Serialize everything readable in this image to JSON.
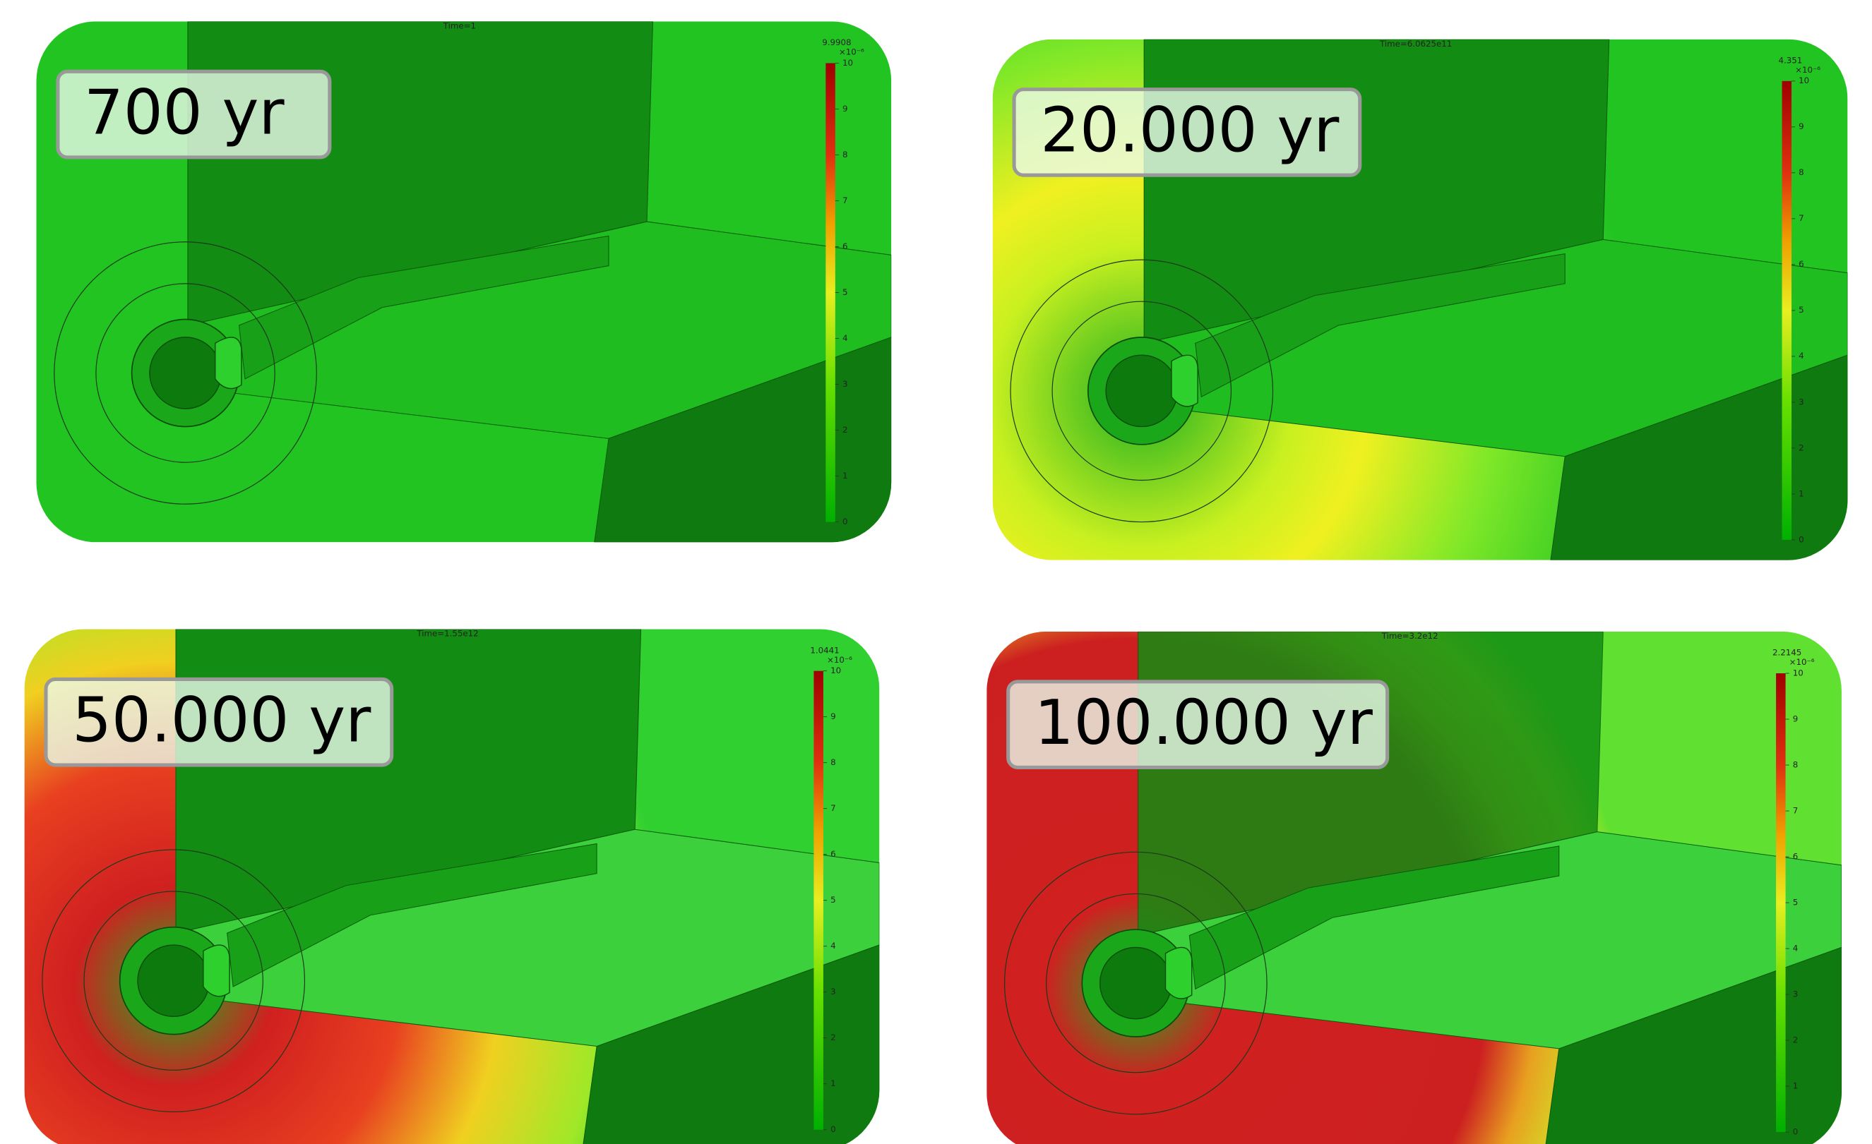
{
  "panels": [
    {
      "label": "700 yr",
      "time": "Time=1",
      "max": "9.9908",
      "unit": "×10⁻⁶",
      "ticks": [
        10,
        9,
        8,
        7,
        6,
        5,
        4,
        3,
        2,
        1,
        0
      ]
    },
    {
      "label": "20.000 yr",
      "time": "Time=6.0625e11",
      "max": "4.351",
      "unit": "×10⁻⁶",
      "ticks": [
        10,
        9,
        8,
        7,
        6,
        5,
        4,
        3,
        2,
        1,
        0
      ]
    },
    {
      "label": "50.000 yr",
      "time": "Time=1.55e12",
      "max": "1.0441",
      "unit": "×10⁻⁶",
      "ticks": [
        10,
        9,
        8,
        7,
        6,
        5,
        4,
        3,
        2,
        1,
        0
      ]
    },
    {
      "label": "100.000 yr",
      "time": "Time=3.2e12",
      "max": "2.2145",
      "unit": "×10⁻⁶",
      "ticks": [
        10,
        9,
        8,
        7,
        6,
        5,
        4,
        3,
        2,
        1,
        0
      ]
    }
  ]
}
